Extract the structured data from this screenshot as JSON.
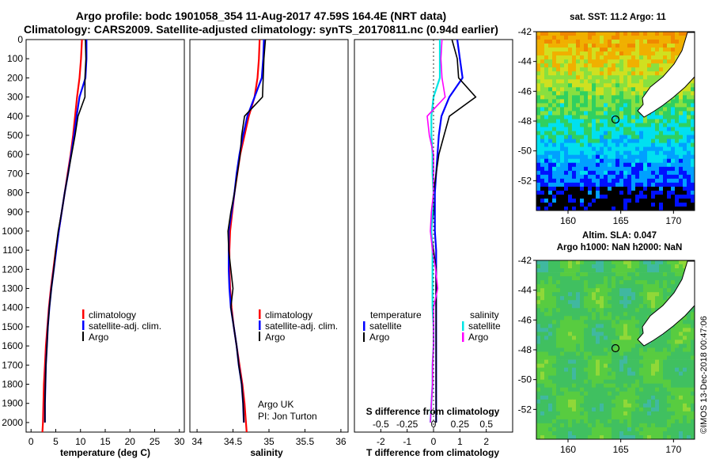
{
  "title": {
    "line1": "Argo profile: bodc 1901058_354 11-Aug-2017 47.59S 164.4E (NRT data)",
    "line2": "Climatology: CARS2009. Satellite-adjusted climatology: synTS_20170811.nc (0.94d earlier)"
  },
  "colors": {
    "climatology": "#ff0000",
    "satellite": "#0000ff",
    "argo": "#000000",
    "satellite_salinity": "#00e5e5",
    "argo_salinity_diff": "#ff00ff"
  },
  "depth_ticks": [
    "0",
    "100",
    "200",
    "300",
    "400",
    "500",
    "600",
    "700",
    "800",
    "900",
    "1000",
    "1100",
    "1200",
    "1300",
    "1400",
    "1500",
    "1600",
    "1700",
    "1800",
    "1900",
    "2000"
  ],
  "legend_main": {
    "climatology": "climatology",
    "satellite": "satellite-adj. clim.",
    "argo": "Argo"
  },
  "legend_diff": {
    "temperature": "temperature",
    "salinity": "salinity",
    "satellite": "satellite",
    "argo": "Argo"
  },
  "credit": {
    "line1": "Argo UK",
    "line2": "PI: Jon Turton"
  },
  "maps": {
    "sst": {
      "title": "sat. SST: 11.2 Argo: 11"
    },
    "sla": {
      "title1": "Altim. SLA: 0.047",
      "title2": "Argo h1000: NaN h2000: NaN"
    },
    "lat_ticks": [
      "-42",
      "-44",
      "-46",
      "-48",
      "-50",
      "-52"
    ],
    "lon_ticks": [
      "160",
      "165",
      "170"
    ]
  },
  "timestamp": "©IMOS 13-Dec-2018 00:47:06",
  "chart_data": [
    {
      "type": "line",
      "xlabel": "temperature (deg C)",
      "ylabel": "",
      "xlim": [
        -1,
        31
      ],
      "ylim": [
        2050,
        0
      ],
      "xticks": [
        "0",
        "5",
        "10",
        "15",
        "20",
        "25",
        "30"
      ],
      "series": [
        {
          "name": "climatology",
          "x": [
            10.3,
            10.1,
            9.8,
            9.3,
            8.9,
            8.5,
            8.0,
            7.4,
            6.8,
            6.2,
            5.6,
            5.0,
            4.5,
            4.0,
            3.6,
            3.3,
            3.0,
            2.8,
            2.6,
            2.5,
            2.4,
            2.3
          ],
          "y": [
            0,
            100,
            200,
            300,
            400,
            500,
            600,
            700,
            800,
            900,
            1000,
            1100,
            1200,
            1300,
            1400,
            1500,
            1600,
            1700,
            1800,
            1900,
            2000,
            2050
          ]
        },
        {
          "name": "satellite-adj. clim.",
          "x": [
            11.2,
            11.2,
            11.0,
            9.8,
            9.2,
            8.7,
            8.1,
            7.5,
            6.8,
            6.2,
            5.6,
            5.1,
            4.6,
            4.1,
            3.7,
            3.4,
            3.2,
            3.0,
            2.9,
            2.8,
            2.8
          ],
          "y": [
            0,
            100,
            200,
            300,
            400,
            500,
            600,
            700,
            800,
            900,
            1000,
            1100,
            1200,
            1300,
            1400,
            1500,
            1600,
            1700,
            1800,
            1900,
            2000
          ]
        },
        {
          "name": "Argo",
          "x": [
            11.0,
            11.1,
            10.9,
            10.9,
            9.5,
            8.9,
            8.2,
            7.5,
            6.8,
            6.2,
            5.5,
            5.0,
            4.6,
            4.1,
            3.7,
            3.4,
            3.2,
            3.0,
            2.9,
            2.8,
            2.8
          ],
          "y": [
            0,
            100,
            200,
            300,
            400,
            500,
            600,
            700,
            800,
            900,
            1000,
            1100,
            1200,
            1300,
            1400,
            1500,
            1600,
            1700,
            1800,
            1900,
            2000
          ]
        }
      ]
    },
    {
      "type": "line",
      "xlabel": "salinity",
      "ylabel": "",
      "xlim": [
        33.9,
        36.1
      ],
      "ylim": [
        2050,
        0
      ],
      "xticks": [
        "34",
        "34.5",
        "35",
        "35.5",
        "36"
      ],
      "series": [
        {
          "name": "climatology",
          "x": [
            34.87,
            34.86,
            34.84,
            34.8,
            34.72,
            34.66,
            34.6,
            34.56,
            34.52,
            34.49,
            34.46,
            34.45,
            34.45,
            34.46,
            34.48,
            34.51,
            34.55,
            34.59,
            34.63,
            34.66,
            34.68,
            34.69
          ],
          "y": [
            0,
            100,
            200,
            300,
            400,
            500,
            600,
            700,
            800,
            900,
            1000,
            1100,
            1200,
            1300,
            1400,
            1500,
            1600,
            1700,
            1800,
            1900,
            2000,
            2050
          ]
        },
        {
          "name": "satellite-adj. clim.",
          "x": [
            34.93,
            34.92,
            34.9,
            34.8,
            34.7,
            34.64,
            34.59,
            34.55,
            34.52,
            34.48,
            34.44,
            34.44,
            34.44,
            34.45,
            34.47,
            34.51,
            34.55,
            34.58,
            34.62,
            34.64,
            34.65
          ],
          "y": [
            0,
            100,
            200,
            300,
            400,
            500,
            600,
            700,
            800,
            900,
            1000,
            1100,
            1200,
            1300,
            1400,
            1500,
            1600,
            1700,
            1800,
            1900,
            2000
          ]
        },
        {
          "name": "Argo",
          "x": [
            34.95,
            34.93,
            34.92,
            34.91,
            34.66,
            34.62,
            34.6,
            34.56,
            34.52,
            34.47,
            34.43,
            34.44,
            34.47,
            34.5,
            34.47,
            34.51,
            34.55,
            34.58,
            34.62,
            34.64,
            34.65
          ],
          "y": [
            0,
            100,
            200,
            300,
            400,
            500,
            600,
            700,
            800,
            900,
            1000,
            1100,
            1200,
            1300,
            1400,
            1500,
            1600,
            1700,
            1800,
            1900,
            2000
          ]
        }
      ]
    },
    {
      "type": "line",
      "xlabel": "T difference from climatology",
      "x2label": "S difference from climatology",
      "ylabel": "",
      "xlim": [
        -3,
        3
      ],
      "ylim": [
        2050,
        0
      ],
      "xticks": [
        "-2",
        "-1",
        "0",
        "1",
        "2"
      ],
      "x2ticks": [
        "-0.5",
        "-0.25",
        "0",
        "0.25",
        "0.5"
      ],
      "series": [
        {
          "name": "temperature satellite",
          "axis": "T",
          "x": [
            0.9,
            1.0,
            1.1,
            0.6,
            0.3,
            0.2,
            0.15,
            0.1,
            0.05,
            0.05,
            0.05,
            0.1,
            0.1,
            0.1,
            0.1,
            0.1,
            0.1,
            0.1,
            0.1,
            0.1,
            0.1
          ],
          "y": [
            0,
            100,
            200,
            300,
            400,
            500,
            600,
            700,
            800,
            900,
            1000,
            1100,
            1200,
            1300,
            1400,
            1500,
            1600,
            1700,
            1800,
            1900,
            2000
          ]
        },
        {
          "name": "temperature Argo",
          "axis": "T",
          "x": [
            0.7,
            0.9,
            0.95,
            1.6,
            0.6,
            0.4,
            0.2,
            0.1,
            0.0,
            0.0,
            -0.1,
            0.0,
            0.1,
            0.1,
            0.1,
            0.1,
            0.1,
            0.1,
            0.1,
            0.1,
            0.1
          ],
          "y": [
            0,
            100,
            200,
            300,
            400,
            500,
            600,
            700,
            800,
            900,
            1000,
            1100,
            1200,
            1300,
            1400,
            1500,
            1600,
            1700,
            1800,
            1900,
            2000
          ]
        },
        {
          "name": "salinity satellite",
          "axis": "S",
          "x": [
            0.06,
            0.06,
            0.06,
            0.0,
            -0.02,
            -0.02,
            -0.01,
            -0.01,
            0.0,
            -0.01,
            -0.02,
            -0.01,
            -0.01,
            -0.01,
            -0.01,
            0.0,
            0.0,
            -0.01,
            -0.01,
            -0.02,
            -0.03
          ],
          "y": [
            0,
            100,
            200,
            300,
            400,
            500,
            600,
            700,
            800,
            900,
            1000,
            1100,
            1200,
            1300,
            1400,
            1500,
            1600,
            1700,
            1800,
            1900,
            2000
          ]
        },
        {
          "name": "salinity Argo",
          "axis": "S",
          "x": [
            0.08,
            0.07,
            0.08,
            0.11,
            -0.06,
            -0.04,
            0.0,
            0.0,
            0.0,
            -0.02,
            -0.03,
            -0.01,
            0.02,
            0.04,
            0.0,
            0.0,
            0.0,
            -0.01,
            -0.01,
            -0.02,
            -0.03
          ],
          "y": [
            0,
            100,
            200,
            300,
            400,
            500,
            600,
            700,
            800,
            900,
            1000,
            1100,
            1200,
            1300,
            1400,
            1500,
            1600,
            1700,
            1800,
            1900,
            2000
          ]
        }
      ]
    },
    {
      "type": "heatmap",
      "title": "sat. SST: 11.2 Argo: 11",
      "xlim": [
        157,
        172
      ],
      "ylim": [
        -54,
        -42
      ],
      "marker": {
        "lon": 164.4,
        "lat": -47.59
      }
    },
    {
      "type": "heatmap",
      "title": "Altim. SLA: 0.047",
      "xlim": [
        157,
        172
      ],
      "ylim": [
        -54,
        -42
      ],
      "marker": {
        "lon": 164.4,
        "lat": -47.59
      }
    }
  ]
}
